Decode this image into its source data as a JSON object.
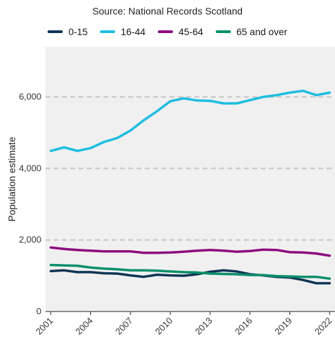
{
  "chart_data": {
    "type": "line",
    "subtitle": "Source: National Records Scotland",
    "ylabel": "Population estimate",
    "xlabel": "",
    "ylim": [
      0,
      7400
    ],
    "xlim": [
      2000.6,
      2022.4
    ],
    "yticks": [
      0,
      2000,
      4000,
      6000
    ],
    "ytick_labels": [
      "0",
      "2,000",
      "4,000",
      "6,000"
    ],
    "xticks": [
      2001,
      2004,
      2007,
      2010,
      2013,
      2016,
      2019,
      2022
    ],
    "xtick_labels": [
      "2001",
      "2004",
      "2007",
      "2010",
      "2013",
      "2016",
      "2019",
      "2022"
    ],
    "grid": "horizontal dashed",
    "legend_position": "top",
    "x": [
      2001,
      2002,
      2003,
      2004,
      2005,
      2006,
      2007,
      2008,
      2009,
      2010,
      2011,
      2012,
      2013,
      2014,
      2015,
      2016,
      2017,
      2018,
      2019,
      2020,
      2021,
      2022
    ],
    "series": [
      {
        "name": "0-15",
        "color": "#0f3554",
        "values": [
          1130,
          1150,
          1100,
          1100,
          1070,
          1060,
          1010,
          970,
          1030,
          1010,
          1000,
          1040,
          1110,
          1150,
          1120,
          1040,
          1010,
          970,
          950,
          880,
          790,
          790
        ]
      },
      {
        "name": "16-44",
        "color": "#1ebde0",
        "values": [
          4490,
          4590,
          4490,
          4570,
          4740,
          4850,
          5060,
          5350,
          5600,
          5880,
          5960,
          5900,
          5890,
          5820,
          5820,
          5910,
          6000,
          6050,
          6120,
          6170,
          6050,
          6120
        ]
      },
      {
        "name": "45-64",
        "color": "#8c0a7f",
        "values": [
          1790,
          1750,
          1720,
          1700,
          1680,
          1680,
          1680,
          1640,
          1640,
          1650,
          1670,
          1700,
          1720,
          1700,
          1670,
          1690,
          1730,
          1720,
          1660,
          1650,
          1620,
          1560
        ]
      },
      {
        "name": "65 and over",
        "color": "#0a8f6a",
        "values": [
          1300,
          1290,
          1280,
          1230,
          1200,
          1180,
          1150,
          1150,
          1140,
          1120,
          1100,
          1090,
          1060,
          1050,
          1040,
          1020,
          1020,
          990,
          980,
          970,
          970,
          920
        ]
      }
    ]
  }
}
